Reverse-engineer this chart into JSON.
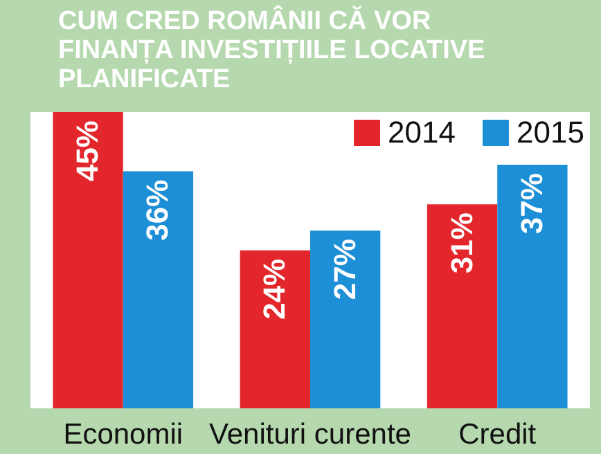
{
  "chart_data": {
    "type": "bar",
    "title": "CUM CRED ROMÂNII CĂ VOR FINANȚA INVESTIȚIILE LOCATIVE PLANIFICATE",
    "categories": [
      "Economii",
      "Venituri curente",
      "Credit"
    ],
    "series": [
      {
        "name": "2014",
        "color": "#e2262b",
        "values": [
          45,
          24,
          31
        ],
        "value_labels": [
          "45%",
          "24%",
          "31%"
        ]
      },
      {
        "name": "2015",
        "color": "#1d8fd6",
        "values": [
          36,
          27,
          37
        ],
        "value_labels": [
          "36%",
          "27%",
          "37%"
        ]
      }
    ],
    "legend": "top right"
  }
}
